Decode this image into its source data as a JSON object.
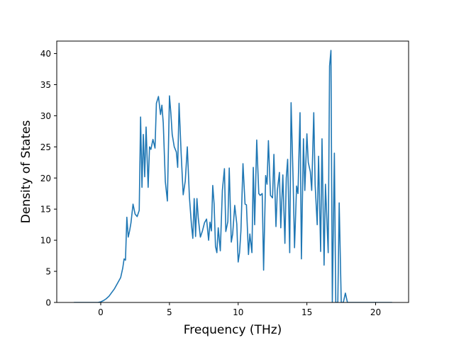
{
  "chart_data": {
    "type": "line",
    "title": "",
    "xlabel": "Frequency (THz)",
    "ylabel": "Density of States",
    "xlim": [
      -3.2,
      22.4
    ],
    "ylim": [
      0,
      42
    ],
    "xticks": [
      0,
      5,
      10,
      15,
      20
    ],
    "yticks": [
      0,
      5,
      10,
      15,
      20,
      25,
      30,
      35,
      40
    ],
    "grid": false,
    "legend": "none",
    "color": "#1f77b4",
    "series": [
      {
        "x": [
          -1.95,
          -0.2,
          0.0,
          0.2,
          0.4,
          0.6,
          0.8,
          1.0,
          1.2,
          1.3,
          1.45,
          1.6,
          1.7,
          1.8,
          1.9,
          2.0,
          2.1,
          2.2,
          2.35,
          2.5,
          2.65,
          2.8,
          2.9,
          3.0,
          3.1,
          3.2,
          3.3,
          3.45,
          3.55,
          3.65,
          3.8,
          3.95,
          4.05,
          4.2,
          4.35,
          4.45,
          4.55,
          4.7,
          4.85,
          5.0,
          5.1,
          5.2,
          5.35,
          5.5,
          5.6,
          5.7,
          5.85,
          6.0,
          6.15,
          6.3,
          6.45,
          6.6,
          6.7,
          6.8,
          6.9,
          7.0,
          7.1,
          7.25,
          7.4,
          7.55,
          7.7,
          7.85,
          7.95,
          8.05,
          8.15,
          8.25,
          8.35,
          8.45,
          8.55,
          8.7,
          8.85,
          9.0,
          9.1,
          9.25,
          9.35,
          9.5,
          9.6,
          9.75,
          9.9,
          10.0,
          10.1,
          10.2,
          10.35,
          10.5,
          10.6,
          10.75,
          10.85,
          11.0,
          11.1,
          11.2,
          11.35,
          11.5,
          11.6,
          11.75,
          11.85,
          12.0,
          12.1,
          12.2,
          12.35,
          12.5,
          12.6,
          12.75,
          12.85,
          13.0,
          13.1,
          13.25,
          13.4,
          13.5,
          13.6,
          13.75,
          13.85,
          14.0,
          14.1,
          14.25,
          14.35,
          14.5,
          14.6,
          14.75,
          14.85,
          15.0,
          15.1,
          15.25,
          15.35,
          15.5,
          15.6,
          15.75,
          15.85,
          16.0,
          16.1,
          16.25,
          16.35,
          16.55,
          16.65,
          16.75,
          16.85,
          17.0,
          17.1,
          17.25,
          17.35,
          17.5,
          17.65,
          17.8,
          17.95,
          18.1,
          18.5,
          21.2
        ],
        "y": [
          0,
          0,
          0.1,
          0.3,
          0.6,
          1.0,
          1.6,
          2.2,
          3.0,
          3.4,
          4.0,
          5.5,
          7.0,
          6.8,
          13.7,
          10.5,
          11.5,
          12.8,
          15.8,
          14.2,
          13.8,
          14.8,
          29.8,
          18.5,
          27.0,
          20.2,
          28.2,
          18.5,
          25.0,
          24.6,
          26.2,
          24.8,
          32.0,
          33.1,
          30.2,
          31.7,
          28.8,
          19.4,
          16.3,
          33.2,
          30.5,
          27.0,
          25.0,
          24.2,
          21.7,
          32.0,
          24.0,
          17.3,
          19.5,
          25.0,
          17.0,
          12.5,
          10.3,
          16.7,
          10.6,
          16.7,
          13.5,
          10.5,
          11.5,
          12.8,
          13.4,
          10.0,
          12.9,
          11.5,
          18.8,
          15.8,
          9.0,
          8.0,
          12.0,
          8.3,
          18.0,
          21.5,
          11.4,
          13.0,
          21.6,
          9.7,
          11.0,
          15.6,
          12.6,
          6.5,
          8.0,
          11.5,
          22.3,
          15.8,
          15.7,
          7.7,
          11.0,
          8.0,
          21.7,
          12.5,
          26.1,
          17.5,
          17.2,
          17.5,
          5.2,
          20.4,
          19.0,
          26.0,
          17.2,
          16.8,
          23.8,
          12.2,
          18.0,
          20.9,
          12.0,
          20.5,
          9.5,
          20.0,
          23.0,
          8.0,
          32.1,
          19.5,
          8.8,
          18.7,
          17.5,
          30.5,
          7.0,
          26.3,
          18.0,
          27.1,
          22.5,
          21.0,
          18.0,
          30.5,
          18.9,
          12.5,
          23.5,
          8.2,
          26.3,
          6.0,
          19.0,
          8.0,
          38.0,
          40.5,
          0.0,
          24.0,
          0.0,
          0.0,
          16.0,
          0.0,
          0.0,
          1.5,
          0.0,
          0.0,
          0.0,
          0.0
        ]
      }
    ]
  }
}
